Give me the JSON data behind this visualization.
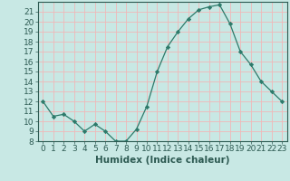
{
  "x": [
    0,
    1,
    2,
    3,
    4,
    5,
    6,
    7,
    8,
    9,
    10,
    11,
    12,
    13,
    14,
    15,
    16,
    17,
    18,
    19,
    20,
    21,
    22,
    23
  ],
  "y": [
    12,
    10.5,
    10.7,
    10,
    9,
    9.7,
    9,
    8,
    8,
    9.2,
    11.5,
    15,
    17.5,
    19,
    20.3,
    21.2,
    21.5,
    21.7,
    19.8,
    17,
    15.7,
    14,
    13,
    12
  ],
  "line_color": "#2d7a6a",
  "marker_color": "#2d7a6a",
  "bg_color": "#c8e8e4",
  "grid_color": "#f0b8b8",
  "xlabel": "Humidex (Indice chaleur)",
  "xlim": [
    -0.5,
    23.5
  ],
  "ylim": [
    8,
    22
  ],
  "yticks": [
    8,
    9,
    10,
    11,
    12,
    13,
    14,
    15,
    16,
    17,
    18,
    19,
    20,
    21
  ],
  "xticks": [
    0,
    1,
    2,
    3,
    4,
    5,
    6,
    7,
    8,
    9,
    10,
    11,
    12,
    13,
    14,
    15,
    16,
    17,
    18,
    19,
    20,
    21,
    22,
    23
  ],
  "tick_fontsize": 6.5,
  "xlabel_fontsize": 7.5
}
